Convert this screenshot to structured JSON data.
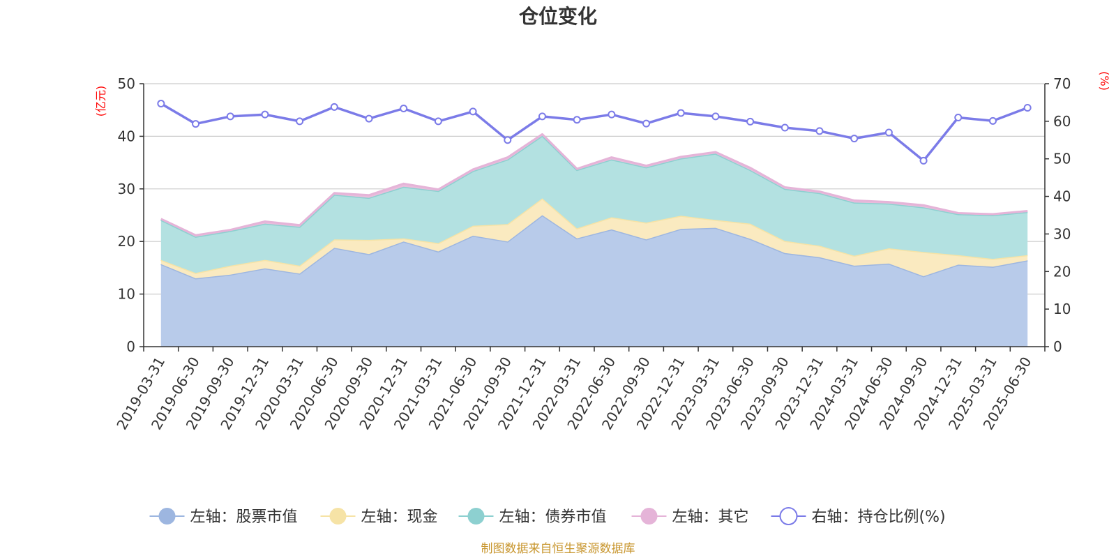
{
  "chart_data": {
    "type": "area",
    "title": "仓位变化",
    "source": "制图数据来自恒生聚源数据库",
    "left_axis_unit": "(亿元)",
    "right_axis_unit": "(%)",
    "left_ylim": [
      0,
      50
    ],
    "left_ticks": [
      "0",
      "10",
      "20",
      "30",
      "40",
      "50"
    ],
    "right_ylim": [
      0,
      70
    ],
    "right_ticks": [
      "0",
      "10",
      "20",
      "30",
      "40",
      "50",
      "60",
      "70"
    ],
    "grid": true,
    "stacked": true,
    "legend_position": "bottom",
    "categories": [
      "2019-03-31",
      "2019-06-30",
      "2019-09-30",
      "2019-12-31",
      "2020-03-31",
      "2020-06-30",
      "2020-09-30",
      "2020-12-31",
      "2021-03-31",
      "2021-06-30",
      "2021-09-30",
      "2021-12-31",
      "2022-03-31",
      "2022-06-30",
      "2022-09-30",
      "2022-12-31",
      "2023-03-31",
      "2023-06-30",
      "2023-09-30",
      "2023-12-31",
      "2024-03-31",
      "2024-06-30",
      "2024-09-30",
      "2024-12-31",
      "2025-03-31",
      "2025-06-30"
    ],
    "series": [
      {
        "name": "左轴：股票市值",
        "axis": "left",
        "type": "area",
        "color": "#9db6e0",
        "fill": "#b8cbea",
        "values": [
          15.7,
          13.0,
          13.7,
          14.9,
          13.9,
          18.8,
          17.6,
          20.0,
          18.1,
          21.1,
          20.0,
          25.0,
          20.6,
          22.3,
          20.4,
          22.4,
          22.6,
          20.5,
          17.8,
          17.0,
          15.4,
          15.8,
          13.4,
          15.6,
          15.2,
          16.4
        ]
      },
      {
        "name": "左轴：现金",
        "axis": "left",
        "type": "area",
        "color": "#f6e3a6",
        "fill": "#faeac0",
        "values": [
          0.8,
          1.0,
          1.7,
          1.6,
          1.5,
          1.6,
          2.7,
          0.6,
          1.6,
          1.9,
          3.3,
          3.2,
          1.9,
          2.3,
          3.2,
          2.5,
          1.5,
          2.9,
          2.3,
          2.2,
          1.9,
          2.9,
          4.6,
          1.8,
          1.5,
          1.0
        ]
      },
      {
        "name": "左轴：债券市值",
        "axis": "left",
        "type": "area",
        "color": "#8dd0d0",
        "fill": "#b3e1e1",
        "values": [
          7.6,
          6.9,
          6.6,
          6.9,
          7.4,
          8.5,
          8.0,
          9.8,
          9.9,
          10.4,
          12.3,
          11.9,
          11.1,
          11.0,
          10.5,
          10.9,
          12.6,
          10.2,
          9.9,
          10.0,
          10.1,
          8.5,
          8.5,
          7.8,
          8.3,
          8.2
        ]
      },
      {
        "name": "左轴：其它",
        "axis": "left",
        "type": "area",
        "color": "#e5b4d8",
        "fill": "#e9bedc",
        "values": [
          0.2,
          0.3,
          0.2,
          0.4,
          0.3,
          0.3,
          0.5,
          0.6,
          0.3,
          0.3,
          0.4,
          0.3,
          0.2,
          0.4,
          0.3,
          0.3,
          0.3,
          0.4,
          0.3,
          0.3,
          0.4,
          0.3,
          0.4,
          0.2,
          0.2,
          0.2
        ]
      },
      {
        "name": "右轴：持仓比例(%)",
        "axis": "right",
        "type": "line",
        "color": "#7b7be8",
        "values": [
          64.7,
          59.3,
          61.3,
          61.8,
          60.0,
          63.8,
          60.7,
          63.4,
          60.0,
          62.6,
          55.0,
          61.3,
          60.4,
          61.8,
          59.4,
          62.2,
          61.3,
          59.9,
          58.3,
          57.4,
          55.4,
          57.0,
          49.5,
          61.0,
          60.1,
          63.6
        ]
      }
    ]
  }
}
